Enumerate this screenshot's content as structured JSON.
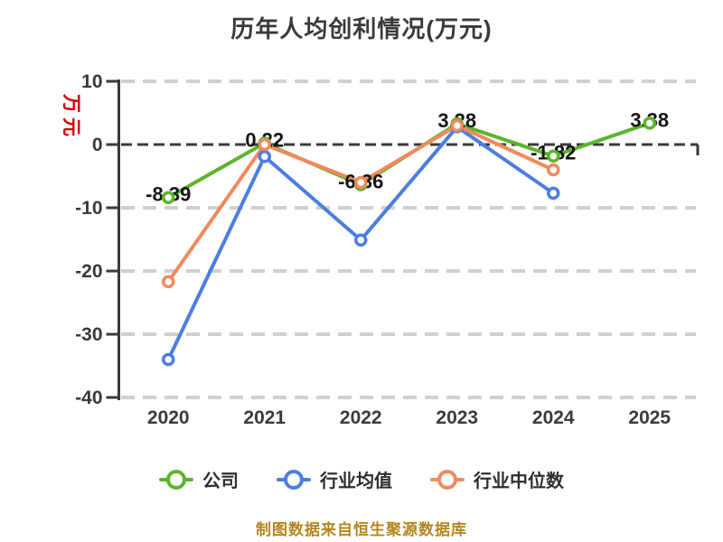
{
  "title": "历年人均创利情况(万元)",
  "y_axis_unit": "万元",
  "caption": "制图数据来自恒生聚源数据库",
  "colors": {
    "company_green": "#5cb42e",
    "industry_avg_blue": "#4c7ee0",
    "industry_median_orange": "#f08a5c",
    "axis_dark": "#3a3a3a",
    "grid_light": "#d0d0d0",
    "data_label_black": "#161616",
    "unit_red": "#d60000",
    "caption_gold": "#b3861e"
  },
  "chart_data": {
    "type": "line",
    "title": "历年人均创利情况(万元)",
    "categories": [
      "2020",
      "2021",
      "2022",
      "2023",
      "2024",
      "2025"
    ],
    "series": [
      {
        "name": "公司",
        "color": "#5cb42e",
        "values": [
          -8.39,
          0.22,
          -6.36,
          3.28,
          -1.82,
          3.38
        ]
      },
      {
        "name": "行业均值",
        "color": "#4c7ee0",
        "values": [
          -34.0,
          -1.9,
          -15.1,
          2.8,
          -7.7,
          null
        ]
      },
      {
        "name": "行业中位数",
        "color": "#f08a5c",
        "values": [
          -21.7,
          0.0,
          -6.0,
          3.0,
          -4.0,
          null
        ]
      }
    ],
    "data_labels": [
      "-8.39",
      "0.22",
      "-6.36",
      "3.28",
      "-1.82",
      "3.38"
    ],
    "data_labels_series": "公司",
    "y_ticks": [
      10,
      0,
      -10,
      -20,
      -30,
      -40
    ],
    "ylim": [
      -40,
      10
    ],
    "ylabel": "万元",
    "xlabel": "",
    "grid": "horizontal dashed; zero line dark dashed",
    "legend_position": "bottom",
    "marker": "circle white fill with colored ring"
  },
  "legend": {
    "items": [
      {
        "label": "公司",
        "color": "#5cb42e"
      },
      {
        "label": "行业均值",
        "color": "#4c7ee0"
      },
      {
        "label": "行业中位数",
        "color": "#f08a5c"
      }
    ]
  }
}
